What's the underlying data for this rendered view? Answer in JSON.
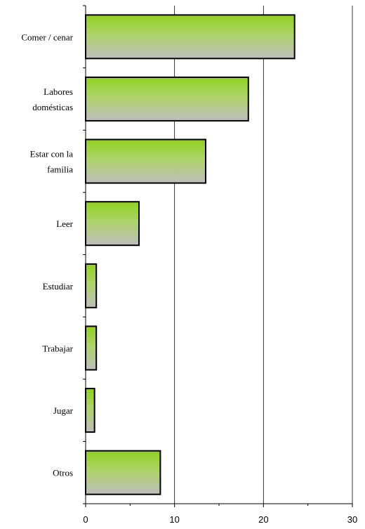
{
  "chart_data": {
    "type": "bar",
    "orientation": "horizontal",
    "categories": [
      [
        "Comer / cenar"
      ],
      [
        "Labores",
        "domésticas"
      ],
      [
        "Estar con la",
        "familia"
      ],
      [
        "Leer"
      ],
      [
        "Estudiar"
      ],
      [
        "Trabajar"
      ],
      [
        "Jugar"
      ],
      [
        "Otros"
      ]
    ],
    "values": [
      23.5,
      18.3,
      13.5,
      6.0,
      1.2,
      1.2,
      1.0,
      8.4
    ],
    "xlim": [
      0,
      30
    ],
    "xticks": [
      0,
      10,
      20,
      30
    ],
    "grid": "vertical",
    "legend": "none",
    "colors": {
      "bar_top": "#8fd11f",
      "bar_bottom": "#bdbdbd",
      "bar_outline": "#000000",
      "grid": "#000000"
    }
  }
}
